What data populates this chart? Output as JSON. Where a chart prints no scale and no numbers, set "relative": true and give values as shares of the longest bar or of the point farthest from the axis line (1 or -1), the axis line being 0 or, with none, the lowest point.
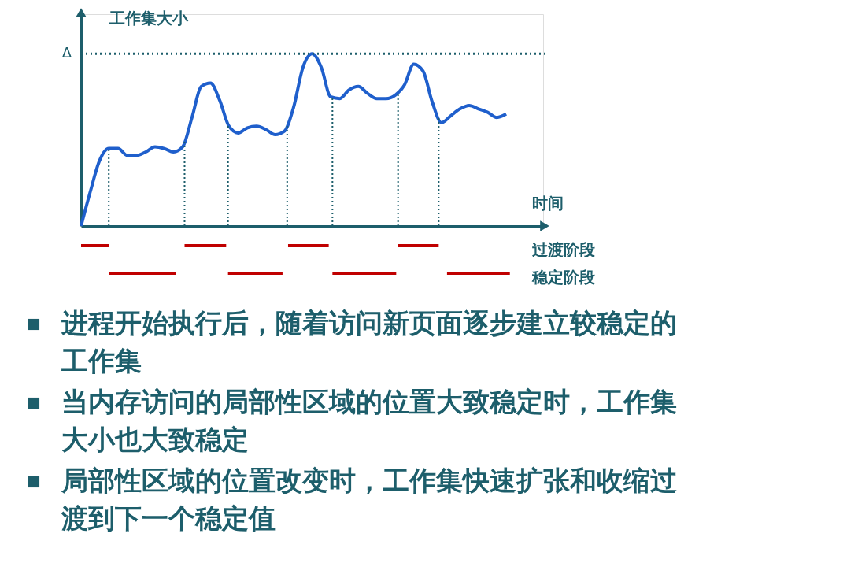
{
  "chart_data": {
    "type": "line",
    "relative": true,
    "ylabel": "工作集大小",
    "xlabel": "时间",
    "tick_labels": false,
    "grid": false,
    "marker": "none",
    "line_style": "solid",
    "categories": [
      null,
      null,
      null,
      null,
      null,
      null,
      null,
      null,
      null,
      null,
      null,
      null,
      null,
      null,
      null,
      null,
      null,
      null,
      null,
      null,
      null,
      null,
      null,
      null,
      null,
      null,
      null,
      null,
      null,
      null,
      null,
      null,
      null,
      null,
      null,
      null,
      null,
      null,
      null,
      null,
      null,
      null,
      null,
      null,
      null,
      null,
      null
    ],
    "series": [
      {
        "color": "#1f5fcc",
        "values": [
          0,
          0.2,
          0.38,
          0.45,
          0.45,
          0.41,
          0.41,
          0.43,
          0.46,
          0.45,
          0.43,
          0.46,
          0.63,
          0.81,
          0.83,
          0.73,
          0.58,
          0.54,
          0.57,
          0.58,
          0.56,
          0.53,
          0.55,
          0.69,
          0.92,
          1,
          0.92,
          0.75,
          0.74,
          0.79,
          0.81,
          0.77,
          0.74,
          0.74,
          0.76,
          0.82,
          0.94,
          0.9,
          0.72,
          0.6,
          0.64,
          0.68,
          0.7,
          0.68,
          0.66,
          0.63,
          0.65
        ]
      }
    ],
    "ref_lines": [
      {
        "axis": "y",
        "value": 1,
        "label": "Δ",
        "color": "#1d5e6b",
        "line_style": "dotted"
      }
    ],
    "annotations": [
      "过渡阶段",
      "稳定阶段",
      "进程开始执行后，随着访问新页面逐步建立较稳定的工作集",
      "当内存访问的局部性区域的位置大致稳定时，工作集大小也大致稳定",
      "局部性区域的位置改变时，工作集快速扩张和收缩过渡到下一个稳定值"
    ]
  }
}
